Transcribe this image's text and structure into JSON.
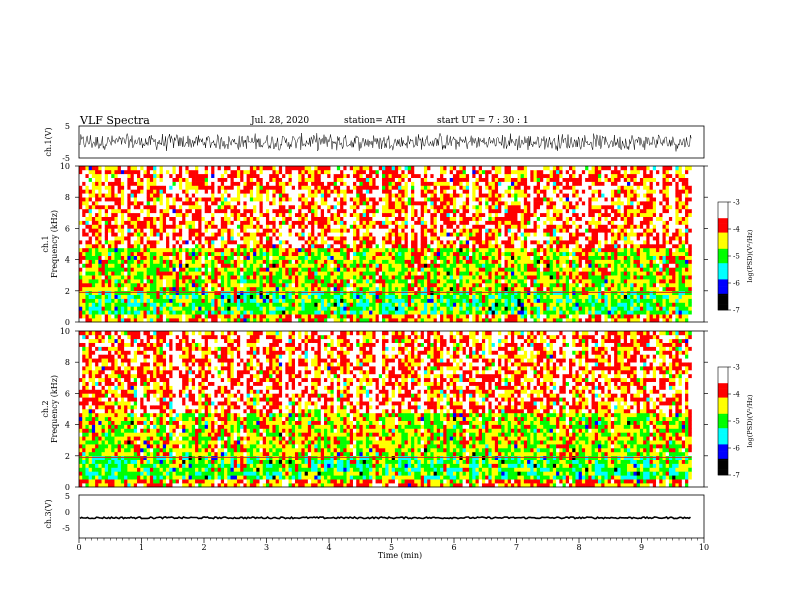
{
  "header": {
    "title": "VLF  Spectra",
    "date": "Jul.  28, 2020",
    "station": "station= ATH",
    "start": "start  UT  =    7  : 30 : 1"
  },
  "chart_data": [
    {
      "type": "line",
      "panel": "ch1-waveform",
      "ylabel": "ch.1(V)",
      "yticks": [
        "5",
        "-5"
      ],
      "ylim": [
        -5,
        5
      ],
      "xlim": [
        0,
        10
      ],
      "xlabel": "Time  (min)",
      "xticks": [
        "0",
        "1",
        "2",
        "3",
        "4",
        "5",
        "6",
        "7",
        "8",
        "9",
        "10"
      ],
      "trace": {
        "data_end_min": 9.8,
        "amplitude_V": [
          -3,
          3
        ],
        "color": "#000000"
      }
    },
    {
      "type": "heatmap",
      "panel": "ch1-spectrogram",
      "ylabel": [
        "ch.1",
        "Frequency  (kHz)"
      ],
      "yticks": [
        "0",
        "2",
        "4",
        "6",
        "8",
        "10"
      ],
      "ylim": [
        0,
        10
      ],
      "xlim": [
        0,
        10
      ],
      "data_end_min": 9.8,
      "colorbar": {
        "label": "log(PSD)(V²/Hz)",
        "ticks": [
          "-3",
          "-4",
          "-5",
          "-6",
          "-7"
        ],
        "range": [
          -7,
          -3
        ],
        "colors": [
          "#000000",
          "#0000ff",
          "#00ffff",
          "#00ff00",
          "#ffff00",
          "#ff0000",
          "#ffffff"
        ]
      }
    },
    {
      "type": "heatmap",
      "panel": "ch2-spectrogram",
      "ylabel": [
        "ch.2",
        "Frequency  (kHz)"
      ],
      "yticks": [
        "0",
        "2",
        "4",
        "6",
        "8",
        "10"
      ],
      "ylim": [
        0,
        10
      ],
      "xlim": [
        0,
        10
      ],
      "data_end_min": 9.8,
      "colorbar": {
        "label": "log(PSD)(V²/Hz)",
        "ticks": [
          "-3",
          "-4",
          "-5",
          "-6",
          "-7"
        ],
        "range": [
          -7,
          -3
        ],
        "colors": [
          "#000000",
          "#0000ff",
          "#00ffff",
          "#00ff00",
          "#ffff00",
          "#ff0000",
          "#ffffff"
        ]
      }
    },
    {
      "type": "line",
      "panel": "ch3-waveform",
      "ylabel": "ch.3(V)",
      "yticks": [
        "5",
        "0",
        "-5"
      ],
      "ylim": [
        -5,
        5
      ],
      "xlim": [
        0,
        10
      ],
      "trace": {
        "data_end_min": 9.8,
        "level_V": -0.3,
        "color": "#000000"
      }
    }
  ]
}
